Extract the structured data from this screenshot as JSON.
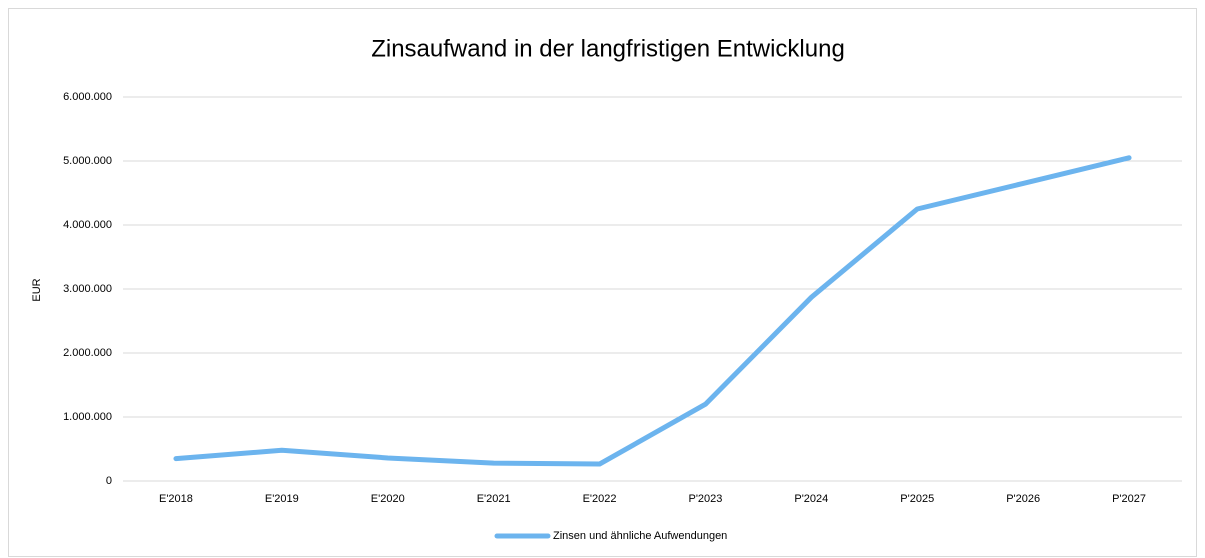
{
  "chart_data": {
    "type": "line",
    "title": "Zinsaufwand in der langfristigen Entwicklung",
    "y_label": "EUR",
    "categories": [
      "E'2018",
      "E'2019",
      "E'2020",
      "E'2021",
      "E'2022",
      "P'2023",
      "P'2024",
      "P'2025",
      "P'2026",
      "P'2027"
    ],
    "series": [
      {
        "name": "Zinsen und ähnliche Aufwendungen",
        "color": "#6cb4ee",
        "values": [
          350000,
          480000,
          360000,
          280000,
          265000,
          1200000,
          2870000,
          4250000,
          4650000,
          5050000
        ]
      }
    ],
    "ylim": [
      0,
      6000000
    ],
    "yticks": [
      0,
      {
        "value": 1000000,
        "label": "1.000.000"
      },
      {
        "value": 2000000,
        "label": "2.000.000"
      },
      {
        "value": 3000000,
        "label": "3.000.000"
      },
      {
        "value": 4000000,
        "label": "4.000.000"
      },
      {
        "value": 5000000,
        "label": "5.000.000"
      },
      {
        "value": 6000000,
        "label": "6.000.000"
      }
    ],
    "grid": true,
    "legend": "bottom"
  }
}
